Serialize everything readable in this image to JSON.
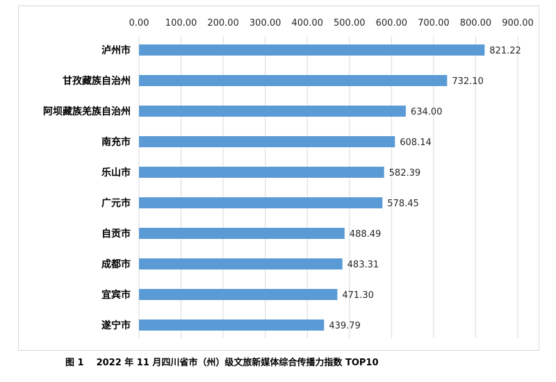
{
  "chart_data": {
    "type": "bar",
    "orientation": "horizontal",
    "axis_position": "top",
    "categories": [
      "泸州市",
      "甘孜藏族自治州",
      "阿坝藏族羌族自治州",
      "南充市",
      "乐山市",
      "广元市",
      "自贡市",
      "成都市",
      "宜宾市",
      "遂宁市"
    ],
    "values": [
      821.22,
      732.1,
      634.0,
      608.14,
      582.39,
      578.45,
      488.49,
      483.31,
      471.3,
      439.79
    ],
    "data_labels": [
      "821.22",
      "732.10",
      "634.00",
      "608.14",
      "582.39",
      "578.45",
      "488.49",
      "483.31",
      "471.30",
      "439.79"
    ],
    "ticks": [
      "0.00",
      "100.00",
      "200.00",
      "300.00",
      "400.00",
      "500.00",
      "600.00",
      "700.00",
      "800.00",
      "900.00"
    ],
    "xlim": [
      0,
      900
    ],
    "grid": true,
    "bar_color": "#5b9bd5",
    "grid_color": "#d9d9d9"
  },
  "caption": {
    "figure_label": "图 1",
    "text": "2022 年 11 月四川省市（州）级文旅新媒体综合传播力指数 TOP10"
  }
}
